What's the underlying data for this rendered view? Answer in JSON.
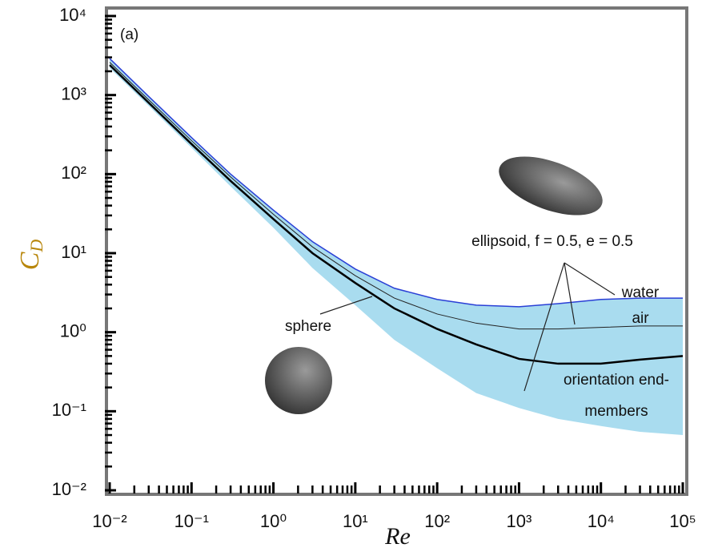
{
  "chart_data": {
    "type": "line",
    "log_x": true,
    "log_y": true,
    "panel_label": "(a)",
    "xlabel": "Re",
    "ylabel": "C",
    "ylabel_sub": "D",
    "xlim": [
      0.01,
      100000
    ],
    "ylim": [
      0.01,
      10000
    ],
    "xticks": [
      {
        "value": 0.01,
        "label": "10⁻²"
      },
      {
        "value": 0.1,
        "label": "10⁻¹"
      },
      {
        "value": 1,
        "label": "10⁰"
      },
      {
        "value": 10,
        "label": "10¹"
      },
      {
        "value": 100,
        "label": "10²"
      },
      {
        "value": 1000,
        "label": "10³"
      },
      {
        "value": 10000,
        "label": "10⁴"
      },
      {
        "value": 100000,
        "label": "10⁵"
      }
    ],
    "yticks": [
      {
        "value": 0.01,
        "label": "10⁻²"
      },
      {
        "value": 0.1,
        "label": "10⁻¹"
      },
      {
        "value": 1,
        "label": "10⁰"
      },
      {
        "value": 10,
        "label": "10¹"
      },
      {
        "value": 100,
        "label": "10²"
      },
      {
        "value": 1000,
        "label": "10³"
      },
      {
        "value": 10000,
        "label": "10⁴"
      }
    ],
    "x": [
      0.01,
      0.03,
      0.1,
      0.3,
      1,
      3,
      10,
      30,
      100,
      300,
      1000,
      3000,
      10000,
      30000,
      100000
    ],
    "band": {
      "name": "orientation end-members",
      "color": "#a9dcef",
      "upper": [
        2900,
        960,
        290,
        100,
        35,
        14,
        6.3,
        3.6,
        2.6,
        2.2,
        2.1,
        2.3,
        2.6,
        2.7,
        2.7
      ],
      "lower": [
        2200,
        730,
        215,
        70,
        21,
        6.5,
        2.2,
        0.8,
        0.35,
        0.17,
        0.11,
        0.08,
        0.065,
        0.055,
        0.05
      ]
    },
    "series": [
      {
        "name": "water",
        "color": "#2a3fd6",
        "width": 1.5,
        "values": [
          2900,
          960,
          290,
          100,
          35,
          14,
          6.3,
          3.6,
          2.6,
          2.2,
          2.1,
          2.3,
          2.6,
          2.7,
          2.7
        ]
      },
      {
        "name": "air",
        "color": "#222222",
        "width": 1,
        "values": [
          2600,
          870,
          265,
          92,
          31,
          12,
          5.2,
          2.7,
          1.7,
          1.3,
          1.1,
          1.1,
          1.15,
          1.2,
          1.2
        ]
      },
      {
        "name": "sphere",
        "color": "#000000",
        "width": 2.5,
        "values": [
          2400,
          800,
          240,
          82,
          27,
          10,
          4.2,
          2.0,
          1.1,
          0.7,
          0.46,
          0.4,
          0.4,
          0.45,
          0.5
        ]
      }
    ],
    "ellipsoid_label": "ellipsoid, f = 0.5, e = 0.5"
  }
}
